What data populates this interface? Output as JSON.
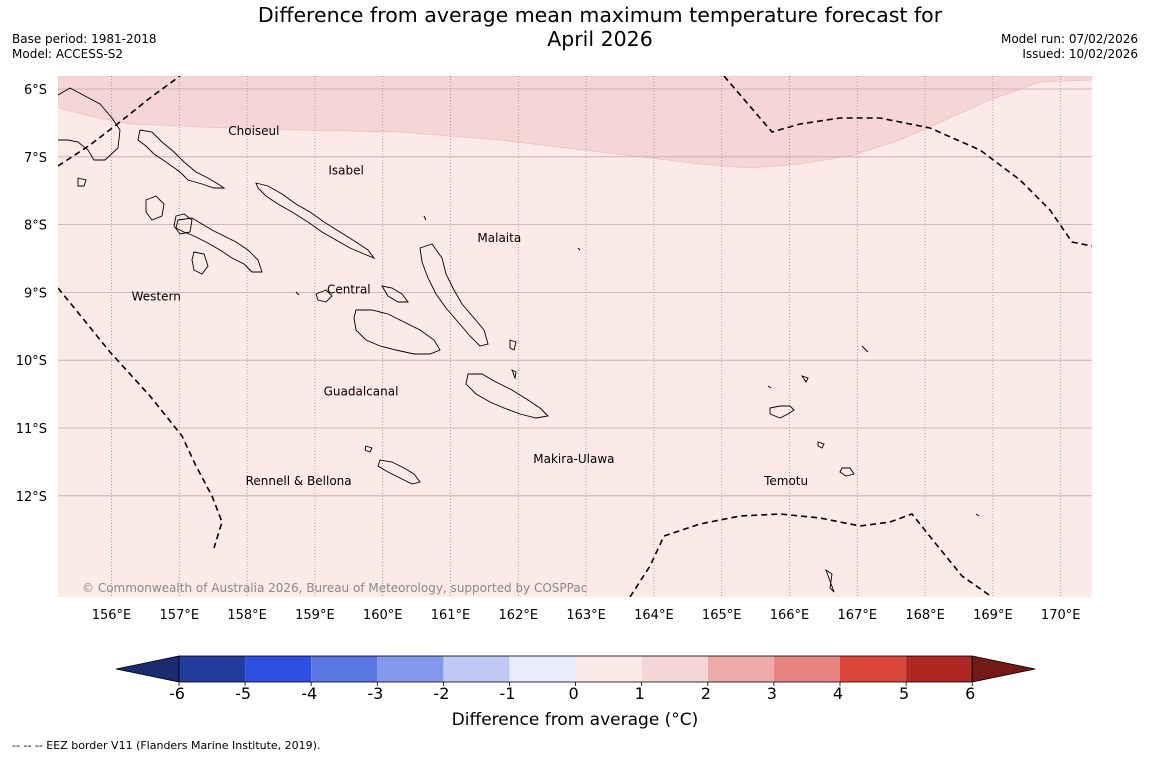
{
  "title_line1": "Difference from average mean maximum temperature forecast for",
  "title_line2": "April 2026",
  "meta_left": {
    "base_period": "Base period: 1981-2018",
    "model": "Model: ACCESS-S2"
  },
  "meta_right": {
    "model_run": "Model run: 07/02/2026",
    "issued": "Issued: 10/02/2026"
  },
  "map": {
    "lat_labels": [
      "6°S",
      "7°S",
      "8°S",
      "9°S",
      "10°S",
      "11°S",
      "12°S"
    ],
    "lon_labels": [
      "156°E",
      "157°E",
      "158°E",
      "159°E",
      "160°E",
      "161°E",
      "162°E",
      "163°E",
      "164°E",
      "165°E",
      "166°E",
      "167°E",
      "168°E",
      "169°E",
      "170°E"
    ],
    "region_labels": [
      "Choiseul",
      "Isabel",
      "Malaita",
      "Western",
      "Central",
      "Guadalcanal",
      "Makira-Ulawa",
      "Rennell & Bellona",
      "Temotu"
    ],
    "copyright": "© Commonwealth of Australia 2026, Bureau of Meteorology, supported by COSPPac",
    "colors": {
      "anomaly_0_1": "#fbeae8",
      "anomaly_1_2": "#f5d6d4"
    }
  },
  "colorbar": {
    "title": "Difference from average (°C)",
    "ticks": [
      "-6",
      "-5",
      "-4",
      "-3",
      "-2",
      "-1",
      "0",
      "1",
      "2",
      "3",
      "4",
      "5",
      "6"
    ],
    "colors": [
      "#233d9e",
      "#2f4fe0",
      "#5a77e4",
      "#8499ec",
      "#c0c9f4",
      "#e9ecfb",
      "#fbeae8",
      "#f5d6d4",
      "#edacaa",
      "#e6857f",
      "#dc473b",
      "#ad2822"
    ],
    "under_color": "#1a2b70",
    "over_color": "#731a16"
  },
  "footnote": "--  --  -- EEZ border V11 (Flanders Marine Institute, 2019)."
}
